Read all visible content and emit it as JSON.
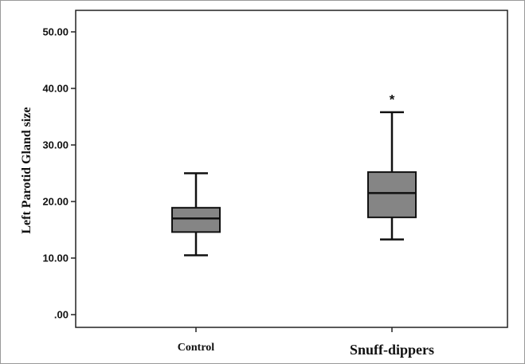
{
  "chart_data": {
    "type": "box",
    "ylabel": "Left Parotid Gland size",
    "xlabel": "",
    "ylim": [
      0,
      50
    ],
    "yticks": [
      {
        "value": 0,
        "label": ".00"
      },
      {
        "value": 10,
        "label": "10.00"
      },
      {
        "value": 20,
        "label": "20.00"
      },
      {
        "value": 30,
        "label": "30.00"
      },
      {
        "value": 40,
        "label": "40.00"
      },
      {
        "value": 50,
        "label": "50.00"
      }
    ],
    "grid": false,
    "box_color": "#858585",
    "categories": [
      "Control",
      "Snuff-dippers"
    ],
    "boxes": [
      {
        "category": "Control",
        "min": 10.5,
        "q1": 14.6,
        "median": 17.0,
        "q3": 18.9,
        "max": 25.0,
        "outliers": []
      },
      {
        "category": "Snuff-dippers",
        "min": 13.3,
        "q1": 17.2,
        "median": 21.5,
        "q3": 25.2,
        "max": 35.8,
        "outliers": [
          {
            "value": 38.5,
            "marker": "*"
          }
        ]
      }
    ]
  }
}
